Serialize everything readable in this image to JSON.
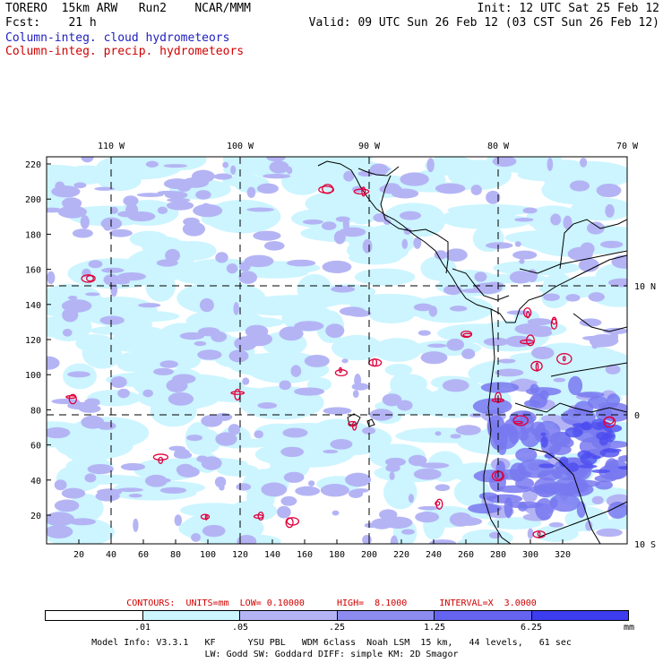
{
  "header": {
    "line1_left": "TORERO  15km ARW   Run2    NCAR/MMM",
    "line1_right": "Init: 12 UTC Sat 25 Feb 12",
    "line2_left": "Fcst:    21 h",
    "line2_right": "Valid: 09 UTC Sun 26 Feb 12 (03 CST Sun 26 Feb 12)",
    "field1": "Column-integ. cloud hydrometeors",
    "field2": "Column-integ. precip. hydrometeors"
  },
  "map": {
    "top_lon_labels": [
      "110 W",
      "100 W",
      "90 W",
      "80 W",
      "70 W"
    ],
    "right_lat_labels": [
      "10 N",
      "0",
      "10 S"
    ],
    "y_grid_labels": [
      "220",
      "200",
      "180",
      "160",
      "140",
      "120",
      "100",
      "80",
      "60",
      "40",
      "20"
    ],
    "x_grid_labels": [
      "20",
      "40",
      "60",
      "80",
      "100",
      "120",
      "140",
      "160",
      "180",
      "200",
      "220",
      "240",
      "260",
      "280",
      "300",
      "320"
    ],
    "colors": {
      "white": "#ffffff",
      "light_cyan": "#ccf5ff",
      "light_violet": "#b4b4f5",
      "mid_violet": "#7878f0",
      "blue": "#4c4cf0",
      "deep_blue": "#2020f0",
      "precip_contour": "#e0003c",
      "coast": "#000000"
    }
  },
  "legend": {
    "contours_text": "CONTOURS:  UNITS=mm  LOW= 0.10000      HIGH=  8.1000      INTERVAL=X  3.0000",
    "bins": [
      ".01",
      ".05",
      ".25",
      "1.25",
      "6.25"
    ],
    "units": "mm",
    "colors": [
      "#ffffff",
      "#ccf5ff",
      "#b4b4f5",
      "#8c8cf0",
      "#6464f0",
      "#3c3cf0"
    ]
  },
  "model_info": {
    "line1": "Model Info: V3.3.1   KF      YSU PBL   WDM 6class  Noah LSM  15 km,   44 levels,   61 sec",
    "line2": "LW: Godd SW: Goddard DIFF: simple KM: 2D Smagor"
  }
}
